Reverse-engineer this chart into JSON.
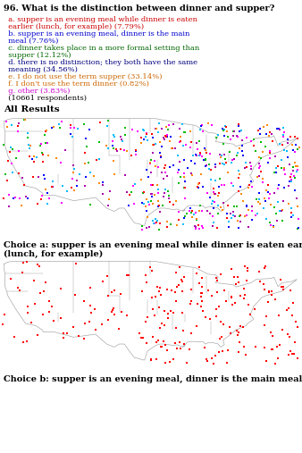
{
  "title": "96. What is the distinction between dinner and supper?",
  "options": [
    {
      "letter": "a",
      "text": "supper is an evening meal while dinner is eaten earlier (lunch, for example) (7.79%)",
      "color": "#cc0000"
    },
    {
      "letter": "b",
      "text": "supper is an evening meal, dinner is the main meal (7.76%)",
      "color": "#0000cc"
    },
    {
      "letter": "c",
      "text": "dinner takes place in a more formal setting than supper (12.12%)",
      "color": "#006600"
    },
    {
      "letter": "d",
      "text": "there is no distinction; they both have the same meaning (34.56%)",
      "color": "#000080"
    },
    {
      "letter": "e",
      "text": "I do not use the term supper (33.14%)",
      "color": "#cc6600"
    },
    {
      "letter": "f",
      "text": "I don't use the term dinner (0.82%)",
      "color": "#cc6600"
    },
    {
      "letter": "g",
      "text": "other (3.83%)",
      "color": "#cc00cc"
    },
    {
      "letter": "",
      "text": "(10661 respondents)",
      "color": "#000000"
    }
  ],
  "section1_title": "All Results",
  "section2_title": "Choice a: supper is an evening meal while dinner is eaten earlier\n(lunch, for example)",
  "section3_title": "Choice b: supper is an evening meal, dinner is the main meal",
  "map1_colors": [
    "#ff0000",
    "#0000ff",
    "#00bb00",
    "#ff00ff",
    "#ff8800",
    "#00bbff",
    "#aa00aa"
  ],
  "map2_color": "#ff0000",
  "bg_color": "#ffffff",
  "fig_w": 3.38,
  "fig_h": 5.07,
  "dpi": 100
}
